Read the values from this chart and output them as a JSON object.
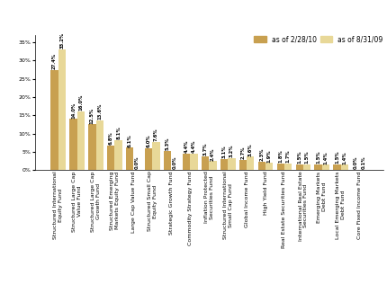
{
  "categories": [
    "Structured International\nEquity Fund",
    "Structured Large Cap\nValue Fund",
    "Structured Large Cap\nGrowth Fund",
    "Structured Emerging\nMarkets Equity Fund",
    "Large Cap Value Fund",
    "Structured Small Cap\nEquity Fund",
    "Strategic Growth Fund",
    "Commodity Strategy Fund",
    "Inflation Protected\nSecurities Fund",
    "Structured International\nSmall Cap Fund",
    "Global Income Fund",
    "High Yield Fund",
    "Real Estate Securities Fund",
    "International Real Estate\nSecurities Fund",
    "Emerging Markets\nDebt Fund",
    "Local Emerging Markets\nDebt Fund",
    "Core Fixed Income Fund"
  ],
  "values_228": [
    27.4,
    14.0,
    12.5,
    6.8,
    6.1,
    6.0,
    5.3,
    4.4,
    3.7,
    3.1,
    2.7,
    2.3,
    1.8,
    1.5,
    1.5,
    1.5,
    0.0
  ],
  "values_831": [
    33.2,
    16.0,
    13.6,
    8.1,
    0.0,
    7.6,
    0.0,
    4.4,
    2.4,
    3.2,
    3.6,
    1.9,
    1.7,
    1.5,
    1.4,
    1.4,
    0.1
  ],
  "labels_228": [
    "27.4%",
    "14.0%",
    "12.5%",
    "6.8%",
    "6.1%",
    "6.0%",
    "5.3%",
    "4.4%",
    "3.7%",
    "3.1%",
    "2.7%",
    "2.3%",
    "1.8%",
    "1.5%",
    "1.5%",
    "1.5%",
    "0.0%"
  ],
  "labels_831": [
    "33.2%",
    "16.0%",
    "13.6%",
    "8.1%",
    "0.0%",
    "7.6%",
    "0.0%",
    "4.4%",
    "2.4%",
    "3.2%",
    "3.6%",
    "1.9%",
    "1.7%",
    "1.5%",
    "1.4%",
    "1.4%",
    "0.1%"
  ],
  "color_228": "#C8A050",
  "color_831": "#E8D898",
  "legend_228": "as of 2/28/10",
  "legend_831": "as of 8/31/09",
  "ylim": [
    0,
    37
  ],
  "yticks": [
    0,
    5,
    10,
    15,
    20,
    25,
    30,
    35
  ],
  "ytick_labels": [
    "0%",
    "5%",
    "10%",
    "15%",
    "20%",
    "25%",
    "30%",
    "35%"
  ],
  "bar_width": 0.4,
  "label_fontsize": 3.8,
  "tick_fontsize": 4.5,
  "legend_fontsize": 5.5,
  "background_color": "#ffffff"
}
